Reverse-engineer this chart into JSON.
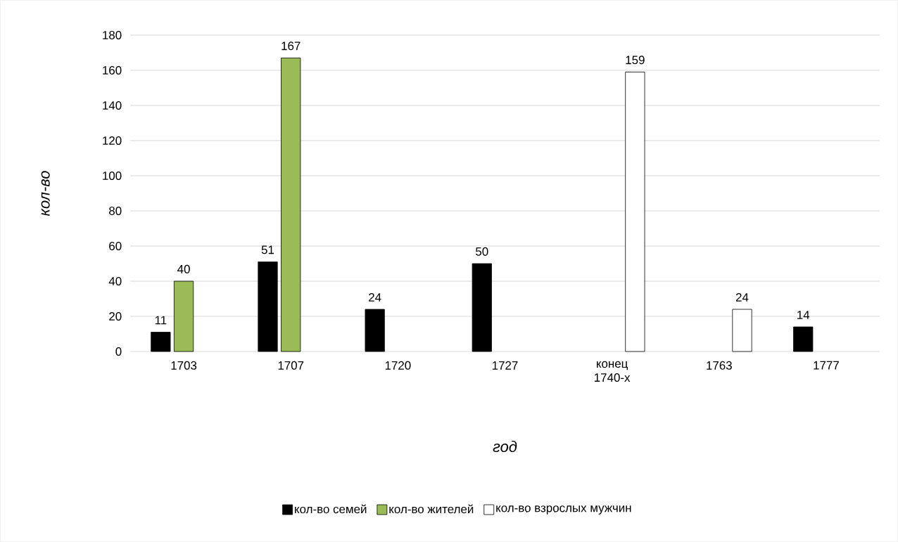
{
  "chart_data": {
    "type": "bar",
    "xlabel": "год",
    "ylabel": "кол-во",
    "categories": [
      "1703",
      "1707",
      "1720",
      "1727",
      "конец 1740-х",
      "1763",
      "1777"
    ],
    "series": [
      {
        "name": "кол-во семей",
        "color": "#000000",
        "values": [
          11,
          51,
          24,
          50,
          null,
          null,
          14
        ]
      },
      {
        "name": "кол-во жителей",
        "color": "#9bbb59",
        "values": [
          40,
          167,
          null,
          null,
          null,
          null,
          null
        ]
      },
      {
        "name": "кол-во взрослых мужчин",
        "color": "#ffffff",
        "values": [
          null,
          null,
          null,
          null,
          159,
          24,
          null
        ]
      }
    ],
    "ylim": [
      0,
      180
    ],
    "yticks": [
      0,
      20,
      40,
      60,
      80,
      100,
      120,
      140,
      160,
      180
    ],
    "grid": "y",
    "legend": "bottom",
    "data_labels": true
  }
}
